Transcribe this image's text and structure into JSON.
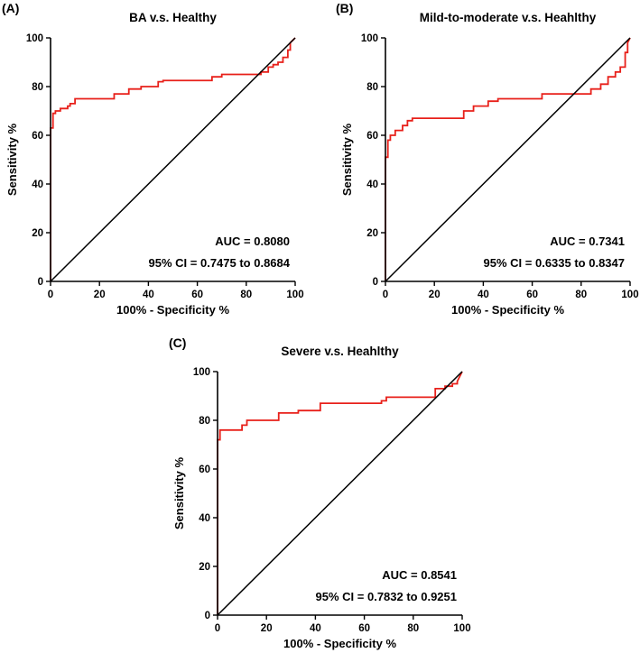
{
  "chart_data": [
    {
      "panel": "(A)",
      "type": "line",
      "title": "BA v.s. Healthy",
      "xlabel": "100% - Specificity %",
      "ylabel": "Sensitivity %",
      "xlim": [
        0,
        100
      ],
      "ylim": [
        0,
        100
      ],
      "xticks": [
        0,
        20,
        40,
        60,
        80,
        100
      ],
      "yticks": [
        0,
        20,
        40,
        60,
        80,
        100
      ],
      "annotations": [
        "AUC = 0.8080",
        "95% CI = 0.7475 to 0.8684"
      ],
      "series": [
        {
          "name": "ROC curve",
          "color": "#e8201a",
          "x": [
            0,
            0,
            1,
            1,
            2,
            2,
            4,
            4,
            7,
            7,
            8,
            8,
            10,
            10,
            12,
            12,
            26,
            26,
            32,
            32,
            37,
            37,
            44,
            44,
            46,
            46,
            66,
            66,
            70,
            70,
            86,
            86,
            89,
            89,
            91,
            91,
            93,
            93,
            95,
            95,
            97,
            97,
            98,
            98,
            100
          ],
          "y": [
            0,
            63,
            63,
            69,
            69,
            70,
            70,
            71,
            71,
            72,
            72,
            73,
            73,
            75,
            75,
            75,
            75,
            77,
            77,
            79,
            79,
            80,
            80,
            82,
            82,
            82.5,
            82.5,
            84,
            84,
            85,
            85,
            86,
            86,
            88,
            88,
            89,
            89,
            90,
            90,
            92,
            92,
            95,
            95,
            98,
            100
          ]
        },
        {
          "name": "Reference line",
          "color": "#000000",
          "x": [
            0,
            100
          ],
          "y": [
            0,
            100
          ]
        }
      ]
    },
    {
      "panel": "(B)",
      "type": "line",
      "title": "Mild-to-moderate v.s. Heahlthy",
      "xlabel": "100% - Specificity %",
      "ylabel": "Sensitivity %",
      "xlim": [
        0,
        100
      ],
      "ylim": [
        0,
        100
      ],
      "xticks": [
        0,
        20,
        40,
        60,
        80,
        100
      ],
      "yticks": [
        0,
        20,
        40,
        60,
        80,
        100
      ],
      "annotations": [
        "AUC = 0.7341",
        "95% CI = 0.6335 to 0.8347"
      ],
      "series": [
        {
          "name": "ROC curve",
          "color": "#e8201a",
          "x": [
            0,
            0,
            1,
            1,
            2,
            2,
            4,
            4,
            7,
            7,
            9,
            9,
            11,
            11,
            32,
            32,
            36,
            36,
            42,
            42,
            46,
            46,
            64,
            64,
            72,
            72,
            84,
            84,
            88,
            88,
            91,
            91,
            94,
            94,
            96,
            96,
            98,
            98,
            99,
            99,
            100
          ],
          "y": [
            0,
            51,
            51,
            58,
            58,
            60,
            60,
            62,
            62,
            64,
            64,
            66,
            66,
            67,
            67,
            70,
            70,
            72,
            72,
            74,
            74,
            75,
            75,
            77,
            77,
            77,
            77,
            79,
            79,
            81,
            81,
            84,
            84,
            86,
            86,
            88,
            88,
            94,
            94,
            98,
            100
          ]
        },
        {
          "name": "Reference line",
          "color": "#000000",
          "x": [
            0,
            100
          ],
          "y": [
            0,
            100
          ]
        }
      ]
    },
    {
      "panel": "(C)",
      "type": "line",
      "title": "Severe v.s. Heahlthy",
      "xlabel": "100% - Specificity %",
      "ylabel": "Sensitivity %",
      "xlim": [
        0,
        100
      ],
      "ylim": [
        0,
        100
      ],
      "xticks": [
        0,
        20,
        40,
        60,
        80,
        100
      ],
      "yticks": [
        0,
        20,
        40,
        60,
        80,
        100
      ],
      "annotations": [
        "AUC = 0.8541",
        "95% CI = 0.7832 to 0.9251"
      ],
      "series": [
        {
          "name": "ROC curve",
          "color": "#e8201a",
          "x": [
            0,
            0,
            1,
            1,
            10,
            10,
            12,
            12,
            25,
            25,
            33,
            33,
            42,
            42,
            67,
            67,
            69,
            69,
            89,
            89,
            93,
            93,
            96,
            96,
            98,
            98,
            100
          ],
          "y": [
            0,
            72,
            72,
            76,
            76,
            78,
            78,
            80,
            80,
            83,
            83,
            84,
            84,
            87,
            87,
            88,
            88,
            89.5,
            89.5,
            93,
            93,
            94,
            94,
            95,
            95,
            96,
            100
          ]
        },
        {
          "name": "Reference line",
          "color": "#000000",
          "x": [
            0,
            100
          ],
          "y": [
            0,
            100
          ]
        }
      ]
    }
  ]
}
